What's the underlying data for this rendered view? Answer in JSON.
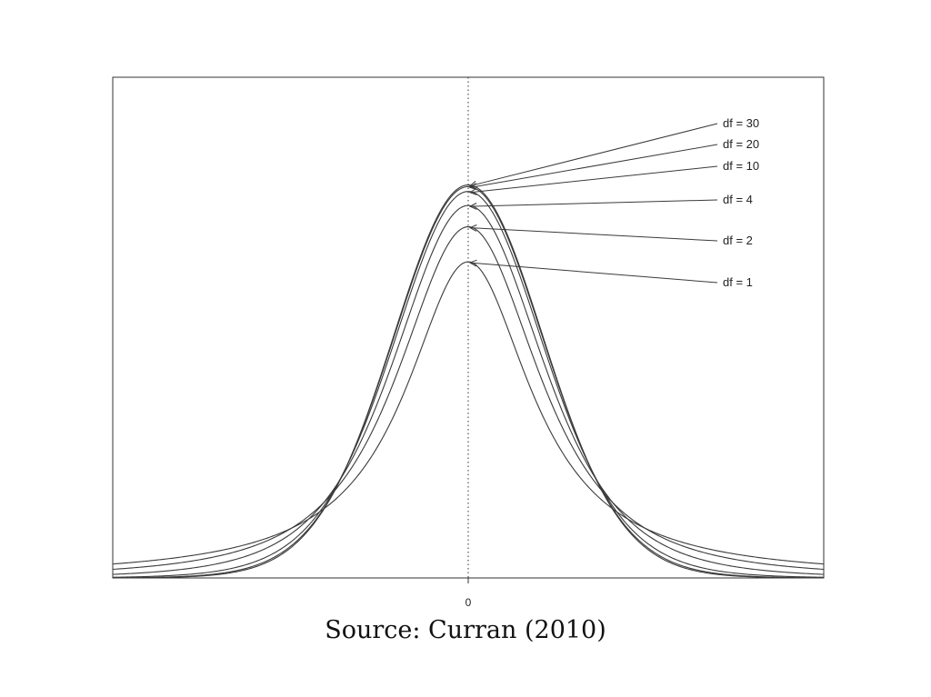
{
  "caption": "Source: Curran (2010)",
  "chart_data": {
    "type": "line",
    "distribution": "Student t density",
    "title": "",
    "xlabel": "",
    "ylabel": "",
    "x_tick_labels": [
      "0"
    ],
    "xlim": [
      -4.5,
      4.5
    ],
    "ylim": [
      0,
      0.42
    ],
    "center_reference_line": {
      "x": 0,
      "style": "dotted"
    },
    "series": [
      {
        "name": "df = 30",
        "df": 30
      },
      {
        "name": "df = 20",
        "df": 20
      },
      {
        "name": "df = 10",
        "df": 10
      },
      {
        "name": "df = 4",
        "df": 4
      },
      {
        "name": "df = 2",
        "df": 2
      },
      {
        "name": "df = 1",
        "df": 1
      }
    ],
    "colors": {
      "line": "#3a3a3a",
      "frame": "#333333"
    }
  }
}
